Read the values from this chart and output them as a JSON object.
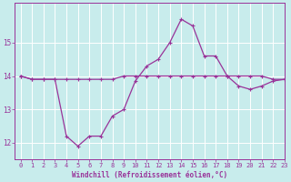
{
  "xlabel": "Windchill (Refroidissement éolien,°C)",
  "background_color": "#c8ecec",
  "line_color": "#993399",
  "grid_color": "#ffffff",
  "hours": [
    0,
    1,
    2,
    3,
    4,
    5,
    6,
    7,
    8,
    9,
    10,
    11,
    12,
    13,
    14,
    15,
    16,
    17,
    18,
    19,
    20,
    21,
    22,
    23
  ],
  "temp": [
    14.0,
    13.9,
    13.9,
    13.9,
    13.9,
    13.9,
    13.9,
    13.9,
    13.9,
    14.0,
    14.0,
    14.0,
    14.0,
    14.0,
    14.0,
    14.0,
    14.0,
    14.0,
    14.0,
    14.0,
    14.0,
    14.0,
    13.9,
    13.9
  ],
  "windchill": [
    14.0,
    13.9,
    13.9,
    13.9,
    12.2,
    11.9,
    12.2,
    12.2,
    12.8,
    13.0,
    13.85,
    14.3,
    14.5,
    15.0,
    15.7,
    15.5,
    14.6,
    14.6,
    14.0,
    13.7,
    13.6,
    13.7,
    13.85,
    13.9
  ],
  "xlim": [
    -0.5,
    23
  ],
  "ylim": [
    11.5,
    16.2
  ],
  "yticks": [
    12,
    13,
    14,
    15
  ],
  "xticks": [
    0,
    1,
    2,
    3,
    4,
    5,
    6,
    7,
    8,
    9,
    10,
    11,
    12,
    13,
    14,
    15,
    16,
    17,
    18,
    19,
    20,
    21,
    22,
    23
  ],
  "tick_fontsize": 5.0,
  "xlabel_fontsize": 5.5
}
